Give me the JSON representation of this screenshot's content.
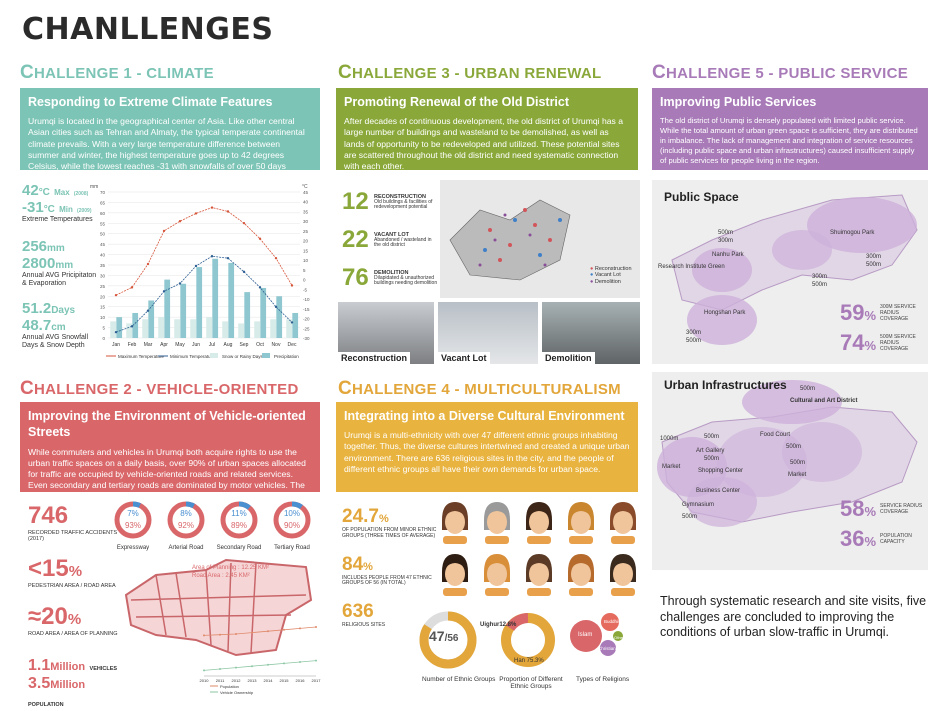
{
  "page": {
    "title": "CHANLLENGES"
  },
  "colors": {
    "teal": "#7cc4b5",
    "green": "#8aa83a",
    "purple": "#a87bb8",
    "red": "#d9676a",
    "orange": "#e2a63a"
  },
  "c1": {
    "heading_pre": "C",
    "heading_rest": "HALLENGE 1 - CLIMATE",
    "box_title": "Responding to Extreme Climate Features",
    "box_text": "Urumqi is located in the geographical center of Asia. Like other central Asian cities such as Tehran and Almaty, the typical temperate continental climate prevails. With a very large temperature difference between summer and winter, the highest temperature goes up to 42 degrees Celsius, while the lowest reaches -31 with snowfalls of over 50 days annually.",
    "t_max": "42",
    "t_max_unit": "°C",
    "t_max_label": "Max",
    "t_max_year": "(2008)",
    "t_min": "-31",
    "t_min_unit": "°C",
    "t_min_label": "Min",
    "t_min_year": "(2009)",
    "extreme_label": "Extreme Temperatures",
    "prec": "256",
    "prec_unit": "mm",
    "evap": "2800",
    "evap_unit": "mm",
    "prec_label": "Annual AVG Pricipitaton & Evaporation",
    "snow_days": "51.2",
    "snow_days_unit": "Days",
    "snow_depth": "48.7",
    "snow_depth_unit": "cm",
    "snow_label": "Annual AVG Snowfall Days & Snow Depth"
  },
  "chart_data": {
    "type": "bar",
    "categories": [
      "Jan",
      "Feb",
      "Mar",
      "Apr",
      "May",
      "Jun",
      "Jul",
      "Aug",
      "Sep",
      "Oct",
      "Nov",
      "Dec"
    ],
    "ylim_left": [
      0,
      70
    ],
    "ylim_right": [
      -30,
      45
    ],
    "yticks_left": [
      0,
      5,
      10,
      15,
      20,
      25,
      30,
      35,
      40,
      45,
      50,
      55,
      60,
      65,
      70
    ],
    "yticks_right": [
      -30,
      -25,
      -20,
      -15,
      -10,
      -5,
      0,
      5,
      10,
      15,
      20,
      25,
      30,
      35,
      40,
      45
    ],
    "ylabel_left": "mm",
    "ylabel_right": "°C",
    "series": [
      {
        "name": "Precipitation",
        "kind": "bar",
        "axis": "left",
        "values": [
          10,
          12,
          18,
          28,
          26,
          34,
          38,
          36,
          22,
          24,
          20,
          12
        ]
      },
      {
        "name": "Snow or Rainy Days",
        "kind": "bar",
        "axis": "left",
        "values": [
          8,
          7,
          9,
          10,
          9,
          9,
          10,
          8,
          7,
          8,
          9,
          9
        ]
      },
      {
        "name": "Maximum Temperature",
        "kind": "line",
        "axis": "right",
        "values": [
          -8,
          -4,
          8,
          25,
          30,
          34,
          37,
          35,
          29,
          21,
          11,
          -3
        ]
      },
      {
        "name": "Minimum Temperature",
        "kind": "line",
        "axis": "right",
        "values": [
          -27,
          -24,
          -16,
          -6,
          -2,
          7,
          12,
          11,
          4,
          -4,
          -14,
          -22
        ]
      }
    ],
    "legend": [
      "Maximum Temperature",
      "Minimum Temperature",
      "Snow or Rainy Days",
      "Precipitation"
    ]
  },
  "c2": {
    "heading_pre": "C",
    "heading_rest": "HALLENGE 2 - VEHICLE-ORIENTED",
    "box_title": "Improving the Environment of Vehicle-oriented Streets",
    "box_text": "While commuters and vehicles in Urumqi both acquire rights to use the urban traffic spaces on a daily basis, over 90% of urban spaces allocated for traffic are occupied by vehicle-oriented roads and related services. Even secondary and tertiary roads are dominated by motor vehicles. The trend of High-speed vehicles approaching sidewalks greatly threatened the safety and convenient use of pedestrians.",
    "accidents": "746",
    "accidents_label": "RECORDED TRAFFIC ACCIDENTS (2017)",
    "ped": "<15",
    "ped_unit": "%",
    "ped_label": "PEDESTRIAN AREA / ROAD AREA",
    "road": "≈20",
    "road_unit": "%",
    "road_label": "ROAD AREA / AREA OF PLANNING",
    "vehicles": "1.1",
    "vehicles_unit": "Million",
    "vehicles_label": "VEHICLES",
    "population": "3.5",
    "population_unit": "Million",
    "population_label": "POPULATION",
    "donuts": [
      {
        "top": "7%",
        "bottom": "93%",
        "label": "Expressway",
        "frac": 0.07
      },
      {
        "top": "8%",
        "bottom": "92%",
        "label": "Arterial Road",
        "frac": 0.08
      },
      {
        "top": "11%",
        "bottom": "89%",
        "label": "Secondary Road",
        "frac": 0.11
      },
      {
        "top": "10%",
        "bottom": "90%",
        "label": "Tertiary Road",
        "frac": 0.1
      }
    ],
    "area_planning": "Area of Planning : 12.25 KM²",
    "road_area": "Road Area : 2.45 KM²",
    "mini_legend": [
      "Population",
      "Vehicle Ownership"
    ],
    "mini_years": [
      "2010",
      "2011",
      "2012",
      "2013",
      "2014",
      "2015",
      "2016",
      "2017"
    ]
  },
  "mini_chart": {
    "type": "line",
    "x": [
      "2010",
      "2011",
      "2012",
      "2013",
      "2014",
      "2015",
      "2016",
      "2017"
    ],
    "series": [
      {
        "name": "Population",
        "values": [
          2.9,
          2.95,
          3.0,
          3.1,
          3.2,
          3.3,
          3.4,
          3.5
        ]
      },
      {
        "name": "Vehicle Ownership",
        "values": [
          0.4,
          0.5,
          0.6,
          0.7,
          0.8,
          0.9,
          1.0,
          1.1
        ]
      }
    ]
  },
  "c3": {
    "heading_pre": "C",
    "heading_rest": "HALLENGE 3 - URBAN RENEWAL",
    "box_title": "Promoting Renewal of the Old District",
    "box_text": "After decades of continuous development, the old district of Urumqi has a large number of buildings and wasteland to be demolished, as well as lands of opportunity to be redeveloped and utilized. These potential sites are scattered throughout the old district and need systematic connection with each other.",
    "stats": [
      {
        "num": "12",
        "title": "RECONSTRUCTION",
        "desc": "Old buildings & facilities of redevelopment potential"
      },
      {
        "num": "22",
        "title": "VACANT LOT",
        "desc": "Abandoned / wasteland in the old district"
      },
      {
        "num": "76",
        "title": "DEMOLITION",
        "desc": "Dilapidated & unauthorized buildings needing demolition"
      }
    ],
    "map_legend": [
      "Reconstruction",
      "Vacant Lot",
      "Demolition"
    ],
    "photos": [
      "Reconstruction",
      "Vacant Lot",
      "Demolition"
    ]
  },
  "c4": {
    "heading_pre": "C",
    "heading_rest": "HALLENGE 4 - MULTICULTURALISM",
    "box_title": "Integrating into a Diverse Cultural Environment",
    "box_text": "Urumqi is a multi-ethnicity with over 47 different ethnic groups inhabiting together. Thus, the diverse cultures intertwined and created a unique urban environment. There are 636 religious sites in the city, and the people of different ethnic groups all have their own demands for urban space.",
    "p1": "24.7",
    "p1_unit": "%",
    "p1_label": "OF POPULATION FROM MINOR ETHNIC GROUPS (THREE TIMES OF AVERAGE)",
    "p2": "84",
    "p2_unit": "%",
    "p2_label": "INCLUDES PEOPLE FROM 47 ETHNIC GROUPS OF 56 (IN TOTAL)",
    "p3": "636",
    "p3_label": "RELIGIOUS SITES",
    "ethnic_num": "47",
    "ethnic_den": "/56",
    "han": "Han 75.3%",
    "uighur": "Uighur12.8%",
    "religions": [
      "Islam",
      "Buddhism",
      "Christianity",
      "Others"
    ],
    "labels": [
      "Number of Ethnic Groups",
      "Proportion of Different Ethnic Groups",
      "Types of Religions"
    ]
  },
  "c5": {
    "heading_pre": "C",
    "heading_rest": "HALLENGE 5 - PUBLIC SERVICE",
    "box_title": "Improving Public Services",
    "box_text": "The old district of Urumqi is densely populated with limited public service. While the total amount of urban green space is sufficient, they are distributed in imbalance. The lack of management and integration of service resources (including public space and urban infrastructures) caused insufficient supply of public services for people living in the region.",
    "ps_title": "Public Space",
    "ps_labels": [
      "500m",
      "300m",
      "Nanhu Park",
      "Shuimogou Park",
      "Research Institute Green",
      "300m",
      "500m",
      "300m",
      "500m",
      "Hongshan Park",
      "300m",
      "500m"
    ],
    "ps_stats": [
      {
        "num": "59",
        "unit": "%",
        "label": "300M SERVICE RADIUS COVERAGE"
      },
      {
        "num": "74",
        "unit": "%",
        "label": "500M SERVICE RADIUS COVERAGE"
      }
    ],
    "ui_title": "Urban Infrastructures",
    "ui_labels": [
      "500m",
      "Cultural and Art District",
      "1000m",
      "500m",
      "Food Court",
      "Art Gallery",
      "500m",
      "500m",
      "Market",
      "Shopping Center",
      "500m",
      "Market",
      "Business Center",
      "Gymnasium",
      "500m"
    ],
    "ui_stats": [
      {
        "num": "58",
        "unit": "%",
        "label": "SERVICE RADIUS COVERAGE"
      },
      {
        "num": "36",
        "unit": "%",
        "label": "POPULATION CAPACITY"
      }
    ]
  },
  "conclusion": "Through systematic research and site visits, five challenges are concluded to improving the conditions of urban slow-traffic in Urumqi."
}
